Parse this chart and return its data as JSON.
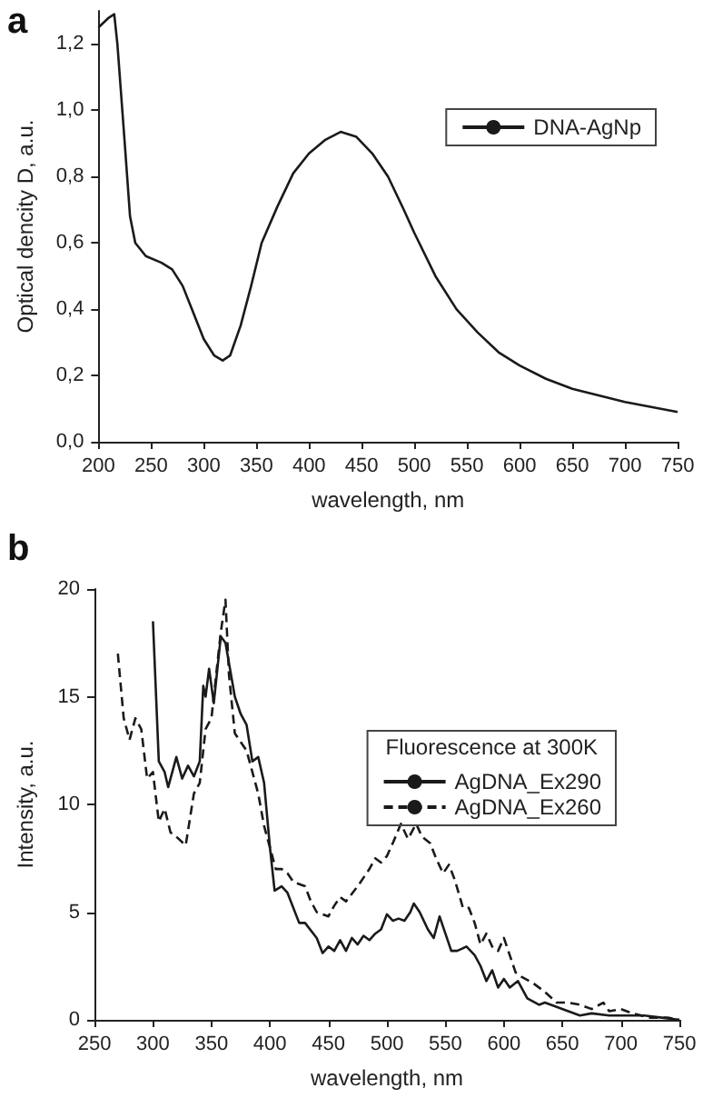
{
  "chart_data": [
    {
      "type": "line",
      "title": "a",
      "xlabel": "wavelength, nm",
      "ylabel": "Optical dencity D, a.u.",
      "x": [
        200,
        210,
        215,
        218,
        225,
        230,
        235,
        245,
        260,
        270,
        280,
        290,
        300,
        310,
        318,
        325,
        335,
        345,
        355,
        370,
        385,
        400,
        415,
        430,
        445,
        460,
        475,
        490,
        500,
        520,
        540,
        560,
        580,
        600,
        625,
        650,
        675,
        700,
        725,
        750
      ],
      "series": [
        {
          "name": "DNA-AgNp",
          "color": "#1a1a1a",
          "line_style": "solid",
          "values": [
            1.25,
            1.28,
            1.29,
            1.2,
            0.9,
            0.68,
            0.6,
            0.56,
            0.54,
            0.52,
            0.47,
            0.39,
            0.31,
            0.26,
            0.245,
            0.26,
            0.35,
            0.47,
            0.6,
            0.71,
            0.81,
            0.87,
            0.91,
            0.935,
            0.92,
            0.87,
            0.8,
            0.7,
            0.63,
            0.5,
            0.4,
            0.33,
            0.27,
            0.23,
            0.19,
            0.16,
            0.14,
            0.12,
            0.105,
            0.09
          ]
        }
      ],
      "xlim": [
        200,
        750
      ],
      "xticks": [
        200,
        250,
        300,
        350,
        400,
        450,
        500,
        550,
        600,
        650,
        700,
        750
      ],
      "ylim": [
        0,
        1.3
      ],
      "yticks": [
        {
          "value": 0,
          "label": "0,0"
        },
        {
          "value": 0.2,
          "label": "0,2"
        },
        {
          "value": 0.4,
          "label": "0,4"
        },
        {
          "value": 0.6,
          "label": "0,6"
        },
        {
          "value": 0.8,
          "label": "0,8"
        },
        {
          "value": 1.0,
          "label": "1,0"
        },
        {
          "value": 1.2,
          "label": "1,2"
        }
      ],
      "grid": false,
      "legend": "top right",
      "marker": "none"
    },
    {
      "type": "line",
      "title": "b",
      "xlabel": "wavelength, nm",
      "ylabel": "Intensity, a.u.",
      "legend_title": "Fluorescence at 300K",
      "series": [
        {
          "name": "AgDNA_Ex290",
          "color": "#1a1a1a",
          "line_style": "solid",
          "x": [
            300,
            305,
            310,
            313,
            320,
            325,
            330,
            335,
            340,
            343,
            345,
            348,
            352,
            358,
            362,
            370,
            375,
            380,
            385,
            390,
            395,
            400,
            404,
            410,
            415,
            425,
            430,
            440,
            445,
            450,
            455,
            460,
            465,
            470,
            475,
            480,
            485,
            490,
            495,
            500,
            505,
            510,
            515,
            520,
            523,
            528,
            535,
            540,
            545,
            550,
            555,
            560,
            568,
            575,
            580,
            585,
            590,
            595,
            600,
            605,
            612,
            620,
            630,
            635,
            645,
            655,
            665,
            675,
            690,
            705,
            720,
            735,
            750
          ],
          "values": [
            18.5,
            12,
            11.5,
            10.8,
            12.2,
            11.2,
            11.8,
            11.3,
            12,
            15.5,
            15,
            16.3,
            14.7,
            17.8,
            17.5,
            15,
            14.2,
            13.7,
            12,
            12.2,
            11,
            8,
            6,
            6.2,
            5.9,
            4.5,
            4.5,
            3.8,
            3.1,
            3.4,
            3.2,
            3.7,
            3.2,
            3.8,
            3.5,
            3.9,
            3.7,
            4,
            4.2,
            4.9,
            4.6,
            4.7,
            4.6,
            5,
            5.4,
            5,
            4.2,
            3.8,
            4.8,
            4,
            3.2,
            3.2,
            3.4,
            3,
            2.5,
            1.8,
            2.3,
            1.5,
            1.9,
            1.5,
            1.8,
            1,
            0.7,
            0.8,
            0.6,
            0.4,
            0.2,
            0.3,
            0.2,
            0.2,
            0.2,
            0.1,
            0
          ]
        },
        {
          "name": "AgDNA_Ex260",
          "color": "#1a1a1a",
          "line_style": "dashed",
          "x": [
            270,
            275,
            280,
            285,
            290,
            295,
            300,
            305,
            310,
            315,
            320,
            328,
            335,
            340,
            345,
            350,
            355,
            358,
            362,
            365,
            370,
            380,
            385,
            390,
            395,
            400,
            405,
            410,
            415,
            420,
            430,
            435,
            440,
            450,
            455,
            460,
            465,
            475,
            485,
            490,
            495,
            500,
            505,
            512,
            518,
            525,
            530,
            537,
            542,
            548,
            553,
            558,
            565,
            570,
            575,
            580,
            585,
            590,
            595,
            600,
            605,
            610,
            615,
            625,
            635,
            645,
            655,
            665,
            675,
            685,
            690,
            700,
            710,
            725,
            740,
            750
          ],
          "values": [
            17,
            14,
            13,
            14,
            13.5,
            11.2,
            11.5,
            9.2,
            9.8,
            8.7,
            8.5,
            8.1,
            10.5,
            11,
            13.5,
            14,
            16.5,
            18,
            19.5,
            16,
            13.3,
            12.5,
            11.5,
            10.5,
            9,
            8,
            7,
            7,
            6.8,
            6.4,
            6.2,
            5.5,
            5,
            4.8,
            5.3,
            5.7,
            5.5,
            6.2,
            7,
            7.5,
            7.3,
            7.6,
            8.2,
            9.1,
            8.4,
            9.1,
            8.5,
            8.2,
            7.5,
            6.8,
            7.2,
            6.5,
            5.2,
            5.2,
            4.5,
            3.5,
            4,
            3.4,
            3.2,
            3.8,
            3,
            2.2,
            2,
            1.7,
            1.3,
            0.8,
            0.8,
            0.7,
            0.5,
            0.8,
            0.4,
            0.5,
            0.3,
            0.1,
            0.1,
            0
          ]
        }
      ],
      "xlim": [
        250,
        750
      ],
      "xticks": [
        250,
        300,
        350,
        400,
        450,
        500,
        550,
        600,
        650,
        700,
        750
      ],
      "ylim": [
        0,
        20
      ],
      "yticks": [
        0,
        5,
        10,
        15,
        20
      ],
      "grid": false,
      "legend": "right",
      "marker": "none"
    }
  ]
}
